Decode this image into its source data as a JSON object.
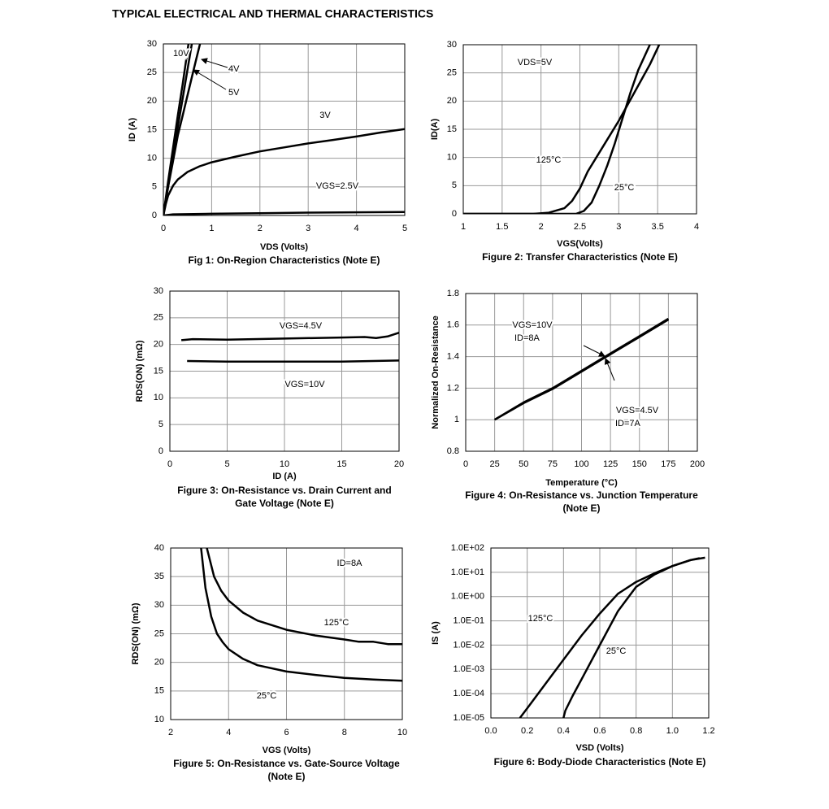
{
  "title": "TYPICAL ELECTRICAL AND THERMAL CHARACTERISTICS",
  "chart_data": [
    {
      "type": "line",
      "title": "Fig 1: On-Region Characteristics (Note E)",
      "xlabel": "VDS (Volts)",
      "ylabel": "ID (A)",
      "xlim": [
        0,
        5
      ],
      "xticks": [
        0,
        1,
        2,
        3,
        4,
        5
      ],
      "ylim": [
        0,
        30
      ],
      "yticks": [
        0,
        5,
        10,
        15,
        20,
        25,
        30
      ],
      "grid": true,
      "series": [
        {
          "name": "10V",
          "color": "#000000",
          "x": [
            0,
            0.1,
            0.2,
            0.3,
            0.4,
            0.52
          ],
          "values": [
            0,
            6,
            11.8,
            17.5,
            23,
            30
          ]
        },
        {
          "name": "5V",
          "color": "#000000",
          "x": [
            0,
            0.1,
            0.2,
            0.3,
            0.4,
            0.5,
            0.59
          ],
          "values": [
            0,
            5.5,
            10.5,
            15.5,
            20.5,
            25.5,
            30
          ]
        },
        {
          "name": "4V",
          "color": "#000000",
          "x": [
            0,
            0.1,
            0.2,
            0.3,
            0.4,
            0.5,
            0.6,
            0.7,
            0.76
          ],
          "values": [
            0,
            5,
            9.5,
            14,
            17.5,
            21,
            24.5,
            28,
            30
          ]
        },
        {
          "name": "3V",
          "color": "#000000",
          "x": [
            0,
            0.05,
            0.1,
            0.2,
            0.3,
            0.5,
            0.75,
            1,
            1.5,
            2,
            2.5,
            3,
            3.5,
            4,
            4.5,
            5
          ],
          "values": [
            0,
            2,
            3.5,
            5.2,
            6.3,
            7.6,
            8.6,
            9.3,
            10.3,
            11.2,
            11.9,
            12.6,
            13.2,
            13.8,
            14.5,
            15.1
          ]
        },
        {
          "name": "VGS=2.5V",
          "color": "#000000",
          "x": [
            0,
            0.2,
            1,
            2,
            3,
            4,
            5
          ],
          "values": [
            0,
            0.2,
            0.3,
            0.4,
            0.5,
            0.55,
            0.6
          ]
        }
      ],
      "annotations": []
    },
    {
      "type": "line",
      "title": "Figure 2: Transfer Characteristics (Note E)",
      "xlabel": "VGS(Volts)",
      "ylabel": "ID(A)",
      "xlim": [
        1,
        4
      ],
      "xticks": [
        1,
        1.5,
        2,
        2.5,
        3,
        3.5,
        4
      ],
      "ylim": [
        0,
        30
      ],
      "yticks": [
        0,
        5,
        10,
        15,
        20,
        25,
        30
      ],
      "grid": true,
      "series": [
        {
          "name": "125°C",
          "color": "#000000",
          "x": [
            1,
            1.9,
            2.1,
            2.3,
            2.4,
            2.5,
            2.6,
            2.8,
            3,
            3.2,
            3.4,
            3.52
          ],
          "values": [
            0,
            0,
            0.2,
            1,
            2.3,
            4.5,
            7.5,
            12,
            16.5,
            21.5,
            26.5,
            30
          ]
        },
        {
          "name": "25°C",
          "color": "#000000",
          "x": [
            1,
            2.45,
            2.55,
            2.65,
            2.75,
            2.85,
            2.95,
            3.05,
            3.15,
            3.25,
            3.4
          ],
          "values": [
            0,
            0,
            0.5,
            2,
            5,
            8.5,
            12.5,
            17,
            21.5,
            25.5,
            30
          ]
        }
      ],
      "annotations": [
        "VDS=5V"
      ]
    },
    {
      "type": "line",
      "title": "Figure 3: On-Resistance vs. Drain Current and\nGate Voltage (Note E)",
      "xlabel": "ID (A)",
      "ylabel": "RDS(ON) (mΩ)",
      "xlim": [
        0,
        20
      ],
      "xticks": [
        0,
        5,
        10,
        15,
        20
      ],
      "ylim": [
        0,
        30
      ],
      "yticks": [
        0,
        5,
        10,
        15,
        20,
        25,
        30
      ],
      "grid": true,
      "series": [
        {
          "name": "VGS=4.5V",
          "color": "#000000",
          "x": [
            1,
            2,
            5,
            10,
            15,
            17,
            18,
            19,
            20
          ],
          "values": [
            20.8,
            21,
            20.9,
            21.1,
            21.3,
            21.4,
            21.2,
            21.5,
            22.2
          ]
        },
        {
          "name": "VGS=10V",
          "color": "#000000",
          "x": [
            1.5,
            5,
            10,
            15,
            20
          ],
          "values": [
            16.9,
            16.8,
            16.8,
            16.8,
            17
          ]
        }
      ],
      "annotations": []
    },
    {
      "type": "line",
      "title": "Figure 4: On-Resistance vs. Junction Temperature\n(Note E)",
      "xlabel": "Temperature (°C)",
      "ylabel": "Normalized On-Resistance",
      "xlim": [
        0,
        200
      ],
      "xticks": [
        0,
        25,
        50,
        75,
        100,
        125,
        150,
        175,
        200
      ],
      "ylim": [
        0.8,
        1.8
      ],
      "yticks": [
        0.8,
        1,
        1.2,
        1.4,
        1.6,
        1.8
      ],
      "grid": true,
      "series": [
        {
          "name": "VGS=10V",
          "color": "#000000",
          "x": [
            25,
            50,
            75,
            100,
            125,
            150,
            175
          ],
          "values": [
            1.0,
            1.11,
            1.2,
            1.31,
            1.42,
            1.53,
            1.64
          ]
        },
        {
          "name": "VGS=4.5V",
          "color": "#000000",
          "x": [
            25,
            50,
            75,
            100,
            125,
            150,
            175
          ],
          "values": [
            1.0,
            1.105,
            1.195,
            1.305,
            1.415,
            1.525,
            1.635
          ]
        }
      ],
      "annotations": [
        "ID=8A",
        "ID=7A"
      ]
    },
    {
      "type": "line",
      "title": "Figure 5: On-Resistance vs. Gate-Source Voltage\n(Note E)",
      "xlabel": "VGS (Volts)",
      "ylabel": "RDS(ON) (mΩ)",
      "xlim": [
        2,
        10
      ],
      "xticks": [
        2,
        4,
        6,
        8,
        10
      ],
      "ylim": [
        10,
        40
      ],
      "yticks": [
        10,
        15,
        20,
        25,
        30,
        35,
        40
      ],
      "grid": true,
      "series": [
        {
          "name": "125°C",
          "color": "#000000",
          "x": [
            3.25,
            3.5,
            3.75,
            4,
            4.5,
            5,
            6,
            7,
            8,
            8.5,
            9,
            9.5,
            10
          ],
          "values": [
            40,
            35,
            32.5,
            30.8,
            28.7,
            27.3,
            25.7,
            24.7,
            24,
            23.6,
            23.6,
            23.2,
            23.2
          ]
        },
        {
          "name": "25°C",
          "color": "#000000",
          "x": [
            3.05,
            3.2,
            3.4,
            3.6,
            3.8,
            4,
            4.5,
            5,
            6,
            7,
            8,
            9,
            10
          ],
          "values": [
            40,
            33,
            28,
            25,
            23.5,
            22.3,
            20.6,
            19.5,
            18.4,
            17.8,
            17.3,
            17,
            16.8
          ]
        }
      ],
      "annotations": [
        "ID=8A"
      ]
    },
    {
      "type": "line",
      "title": "Figure 6: Body-Diode Characteristics (Note E)",
      "xlabel": "VSD (Volts)",
      "ylabel": "IS (A)",
      "xlim": [
        0,
        1.2
      ],
      "xticks": [
        {
          "value": 0,
          "label": "0.0"
        },
        0.2,
        0.4,
        0.6,
        0.8,
        {
          "value": 1,
          "label": "1.0"
        },
        1.2
      ],
      "ylim": [
        1e-05,
        100
      ],
      "yscale": "log",
      "yticks": [
        {
          "value": 1e-05,
          "label": "1.0E-05"
        },
        {
          "value": 0.0001,
          "label": "1.0E-04"
        },
        {
          "value": 0.001,
          "label": "1.0E-03"
        },
        {
          "value": 0.01,
          "label": "1.0E-02"
        },
        {
          "value": 0.1,
          "label": "1.0E-01"
        },
        {
          "value": 1,
          "label": "1.0E+00"
        },
        {
          "value": 10,
          "label": "1.0E+01"
        },
        {
          "value": 100,
          "label": "1.0E+02"
        }
      ],
      "grid": true,
      "series": [
        {
          "name": "125°C",
          "color": "#000000",
          "x": [
            0.16,
            0.2,
            0.3,
            0.4,
            0.5,
            0.6,
            0.7,
            0.8,
            0.9,
            1.0,
            1.1,
            1.15
          ],
          "values": [
            1e-05,
            2.5e-05,
            0.00025,
            0.0025,
            0.025,
            0.2,
            1.3,
            4,
            9,
            18,
            32,
            38
          ]
        },
        {
          "name": "25°C",
          "color": "#000000",
          "x": [
            0.4,
            0.41,
            0.45,
            0.5,
            0.6,
            0.7,
            0.8,
            0.9,
            1.0,
            1.1,
            1.18
          ],
          "values": [
            1e-05,
            2e-05,
            8e-05,
            0.0004,
            0.01,
            0.25,
            2.5,
            8,
            18,
            32,
            40
          ]
        }
      ],
      "annotations": []
    }
  ]
}
